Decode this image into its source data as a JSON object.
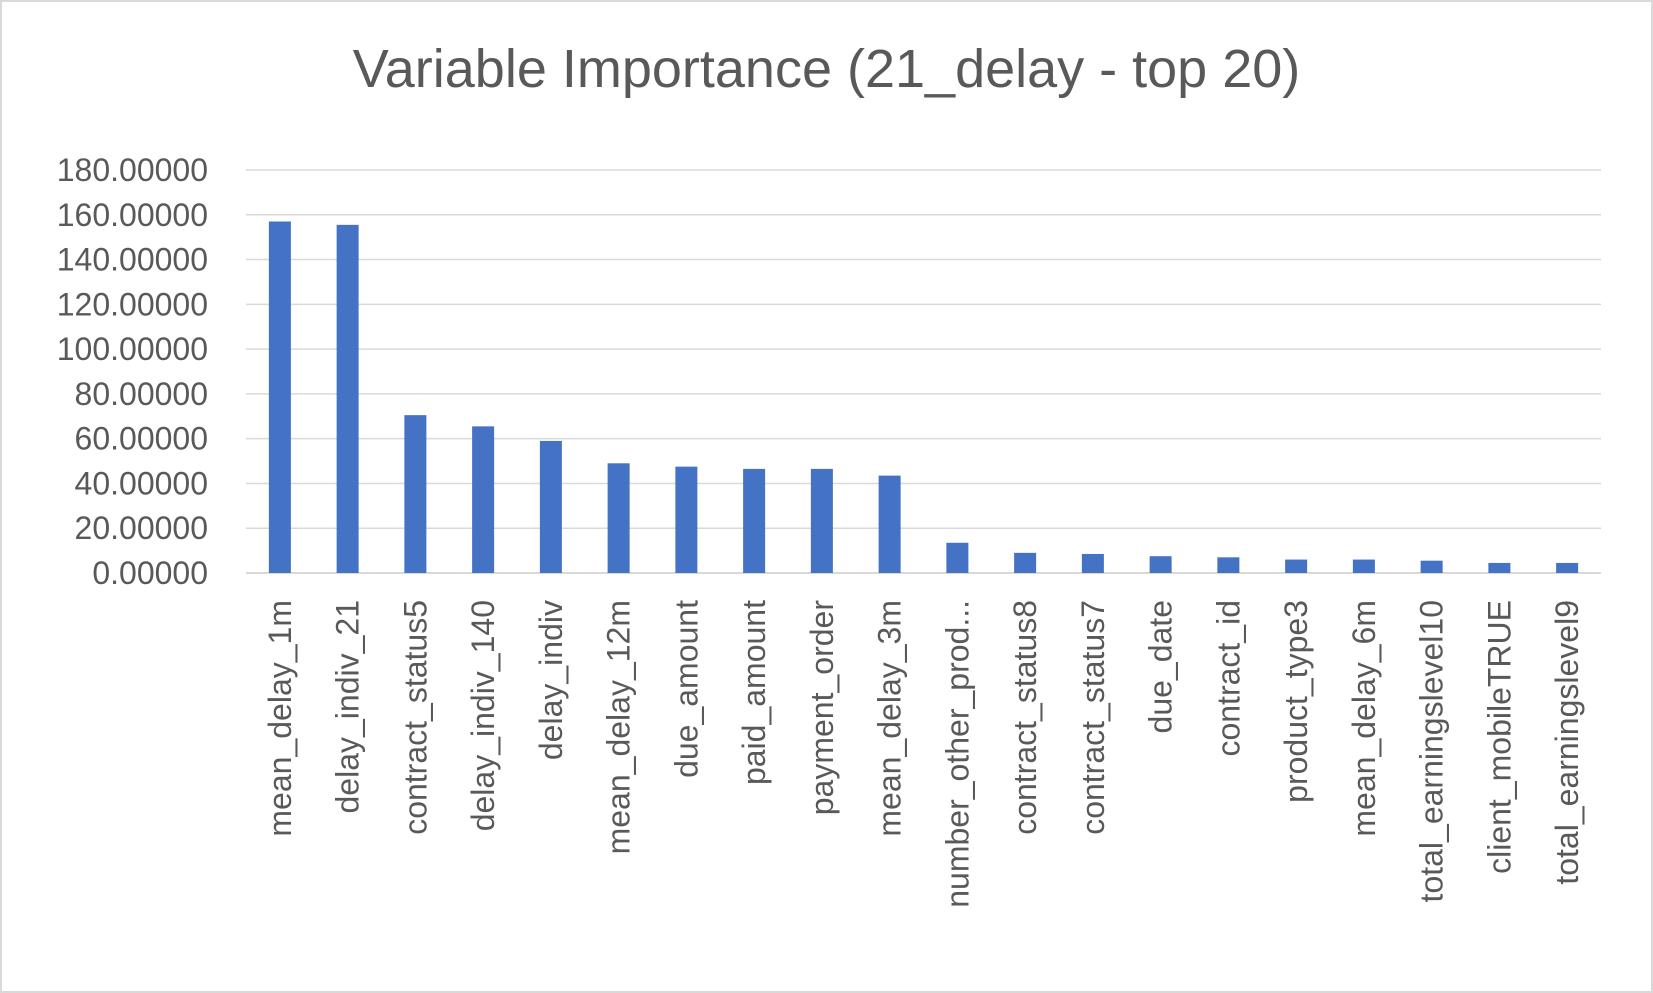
{
  "chart_data": {
    "type": "bar",
    "title": "Variable Importance (21_delay - top 20)",
    "xlabel": "",
    "ylabel": "",
    "ylim": [
      0,
      180
    ],
    "yticks": [
      0,
      20,
      40,
      60,
      80,
      100,
      120,
      140,
      160,
      180
    ],
    "ytick_decimals": 5,
    "grid": true,
    "legend": "none",
    "bar_color": "#4472c4",
    "grid_color": "#d9d9d9",
    "categories": [
      "mean_delay_1m",
      "delay_indiv_21",
      "contract_status5",
      "delay_indiv_140",
      "delay_indiv",
      "mean_delay_12m",
      "due_amount",
      "paid_amount",
      "payment_order",
      "mean_delay_3m",
      "number_other_prod...",
      "contract_status8",
      "contract_status7",
      "due_date",
      "contract_id",
      "product_type3",
      "mean_delay_6m",
      "total_earningslevel10",
      "client_mobileTRUE",
      "total_earningslevel9"
    ],
    "values": [
      157.0,
      155.5,
      70.5,
      65.5,
      59.0,
      49.0,
      47.5,
      46.5,
      46.5,
      43.5,
      13.5,
      9.0,
      8.5,
      7.5,
      7.0,
      6.0,
      6.0,
      5.5,
      4.5,
      4.5
    ]
  }
}
